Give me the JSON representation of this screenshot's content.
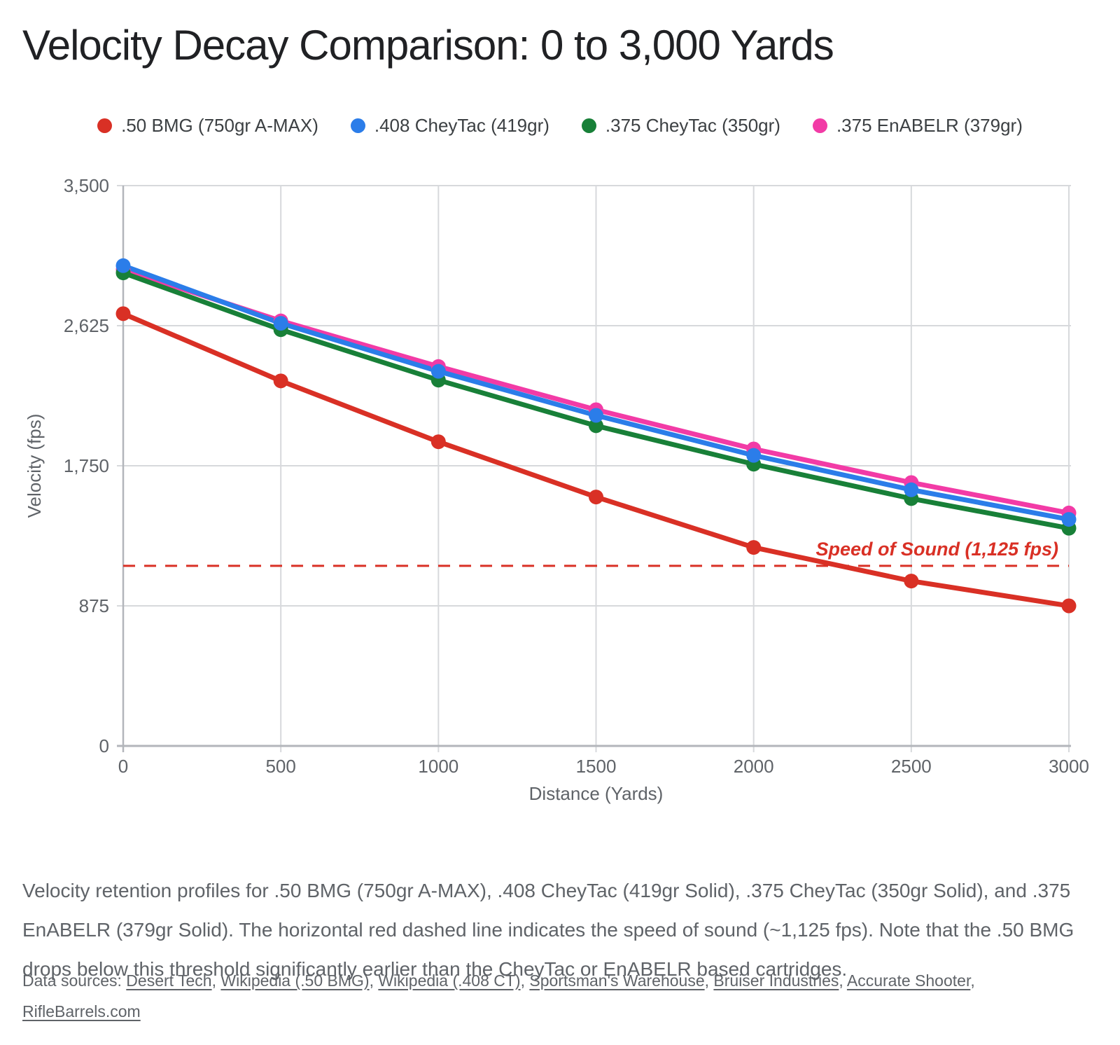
{
  "title": "Velocity Decay Comparison: 0 to 3,000 Yards",
  "chart_data": {
    "type": "line",
    "x": [
      0,
      500,
      1000,
      1500,
      2000,
      2500,
      3000
    ],
    "xlabel": "Distance (Yards)",
    "ylabel": "Velocity (fps)",
    "xlim": [
      0,
      3000
    ],
    "ylim": [
      0,
      3500
    ],
    "xticks": [
      0,
      500,
      1000,
      1500,
      2000,
      2500,
      3000
    ],
    "xtick_labels": [
      "0",
      "500",
      "1000",
      "1500",
      "2000",
      "2500",
      "3000"
    ],
    "yticks": [
      0,
      875,
      1750,
      2625,
      3500
    ],
    "ytick_labels": [
      "0",
      "875",
      "1,750",
      "2,625",
      "3,500"
    ],
    "grid": true,
    "legend_position": "top",
    "series": [
      {
        "name": ".50 BMG (750gr A-MAX)",
        "color": "#d93025",
        "values": [
          2700,
          2280,
          1900,
          1555,
          1240,
          1030,
          875
        ]
      },
      {
        "name": ".408 CheyTac (419gr)",
        "color": "#2b7de9",
        "values": [
          3000,
          2640,
          2340,
          2065,
          1815,
          1600,
          1415
        ]
      },
      {
        "name": ".375 CheyTac (350gr)",
        "color": "#188038",
        "values": [
          2955,
          2600,
          2285,
          2000,
          1760,
          1545,
          1360
        ]
      },
      {
        "name": ".375 EnABELR (379gr)",
        "color": "#f23ba6",
        "values": [
          2975,
          2655,
          2370,
          2100,
          1855,
          1645,
          1455
        ]
      }
    ],
    "annotation": {
      "label": "Speed of Sound (1,125 fps)",
      "value": 1125,
      "color": "#d93025",
      "style": "dashed"
    }
  },
  "caption": "Velocity retention profiles for .50 BMG (750gr A-MAX), .408 CheyTac (419gr Solid), .375 CheyTac (350gr Solid), and .375 EnABELR (379gr Solid). The horizontal red dashed line indicates the speed of sound (~1,125 fps). Note that the .50 BMG drops below this threshold significantly earlier than the CheyTac or EnABELR based cartridges.",
  "sources": {
    "prefix": "Data sources: ",
    "links": [
      "Desert Tech",
      "Wikipedia (.50 BMG)",
      "Wikipedia (.408 CT)",
      "Sportsman's Warehouse",
      "Bruiser Industries",
      "Accurate Shooter",
      "RifleBarrels.com"
    ],
    "separator": ", "
  },
  "colors": {
    "grid": "#d7d9dc",
    "axis": "#b3b6bb",
    "tick_text": "#5f6368",
    "title_text": "#202124",
    "legend_text": "#3c4043"
  }
}
